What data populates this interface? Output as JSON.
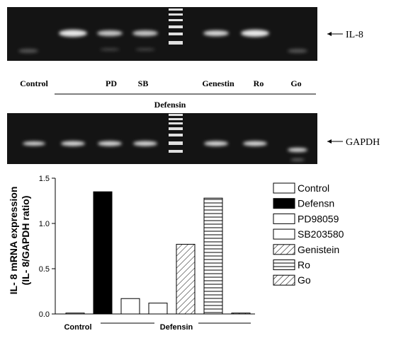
{
  "gel": {
    "il8_label": "IL-8",
    "gapdh_label": "GAPDH",
    "lanes": {
      "control": "Control",
      "pd": "PD",
      "sb": "SB",
      "genestin": "Genestin",
      "ro": "Ro",
      "go": "Go"
    },
    "group_label": "Defensin"
  },
  "chart_data": {
    "type": "bar",
    "y_label": [
      "IL- 8 mRNA expression",
      "(IL- 8/GAPDH ratio)"
    ],
    "categories": [
      "Control",
      "Defensn",
      "PD98059",
      "SB203580",
      "Genistein",
      "Ro",
      "Go"
    ],
    "values": [
      0.01,
      1.35,
      0.17,
      0.12,
      0.77,
      1.28,
      0.01
    ],
    "patterns": [
      "none",
      "solid",
      "none",
      "none",
      "diagonal",
      "horizontal",
      "diagonal"
    ],
    "color": "#000000",
    "x_labels": {
      "control": "Control",
      "group": "Defensin"
    },
    "ylim": [
      0,
      1.5
    ],
    "yticks": [
      {
        "value": 0,
        "label": "0.0"
      },
      {
        "value": 0.5,
        "label": "0.5"
      },
      {
        "value": 1,
        "label": "1.0"
      },
      {
        "value": 1.5,
        "label": "1.5"
      }
    ],
    "legend": "right"
  }
}
